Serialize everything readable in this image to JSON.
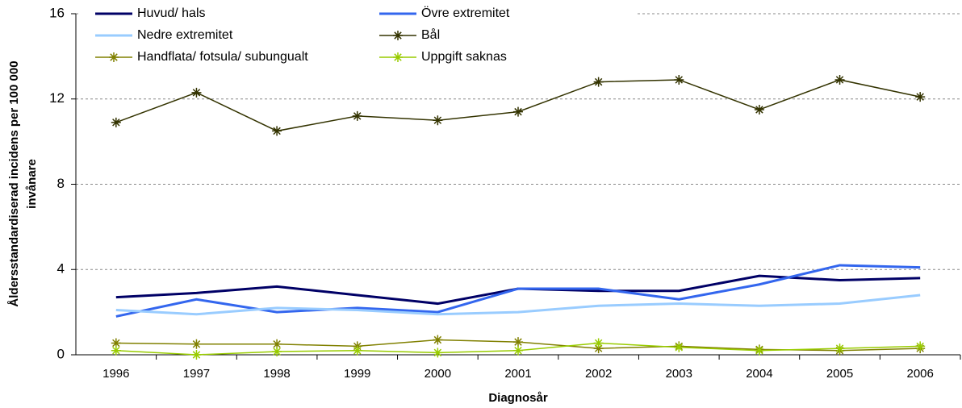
{
  "chart_data": {
    "type": "line",
    "ylabel": [
      "Åldersstandardiserad incidens per 100 000",
      "invånare"
    ],
    "xlabel": "Diagnosår",
    "categories": [
      "1996",
      "1997",
      "1998",
      "1999",
      "2000",
      "2001",
      "2002",
      "2003",
      "2004",
      "2005",
      "2006"
    ],
    "series": [
      {
        "name": "Huvud/ hals",
        "color": "#000066",
        "values": [
          2.7,
          2.9,
          3.2,
          2.8,
          2.4,
          3.1,
          3.0,
          3.0,
          3.7,
          3.5,
          3.6
        ]
      },
      {
        "name": "Övre extremitet",
        "color": "#3366ee",
        "values": [
          1.8,
          2.6,
          2.0,
          2.2,
          2.0,
          3.1,
          3.1,
          2.6,
          3.3,
          4.2,
          4.1
        ]
      },
      {
        "name": "Nedre extremitet",
        "color": "#99ccff",
        "values": [
          2.1,
          1.9,
          2.2,
          2.1,
          1.9,
          2.0,
          2.3,
          2.4,
          2.3,
          2.4,
          2.8
        ]
      },
      {
        "name": "Bål",
        "color": "#333300",
        "marker": "asterisk",
        "values": [
          10.9,
          12.3,
          10.5,
          11.2,
          11.0,
          11.4,
          12.8,
          12.9,
          11.5,
          12.9,
          12.1
        ]
      },
      {
        "name": "Handflata/ fotsula/ subungualt",
        "color": "#808000",
        "marker": "asterisk",
        "values": [
          0.55,
          0.5,
          0.5,
          0.4,
          0.7,
          0.6,
          0.3,
          0.4,
          0.25,
          0.2,
          0.3
        ]
      },
      {
        "name": "Uppgift saknas",
        "color": "#99cc00",
        "marker": "asterisk",
        "values": [
          0.2,
          0.0,
          0.15,
          0.2,
          0.1,
          0.2,
          0.55,
          0.35,
          0.2,
          0.3,
          0.4
        ]
      }
    ],
    "ylim": [
      0,
      16
    ],
    "yticks": [
      0,
      4,
      8,
      12,
      16
    ],
    "grid": true,
    "legend": "top-left"
  }
}
